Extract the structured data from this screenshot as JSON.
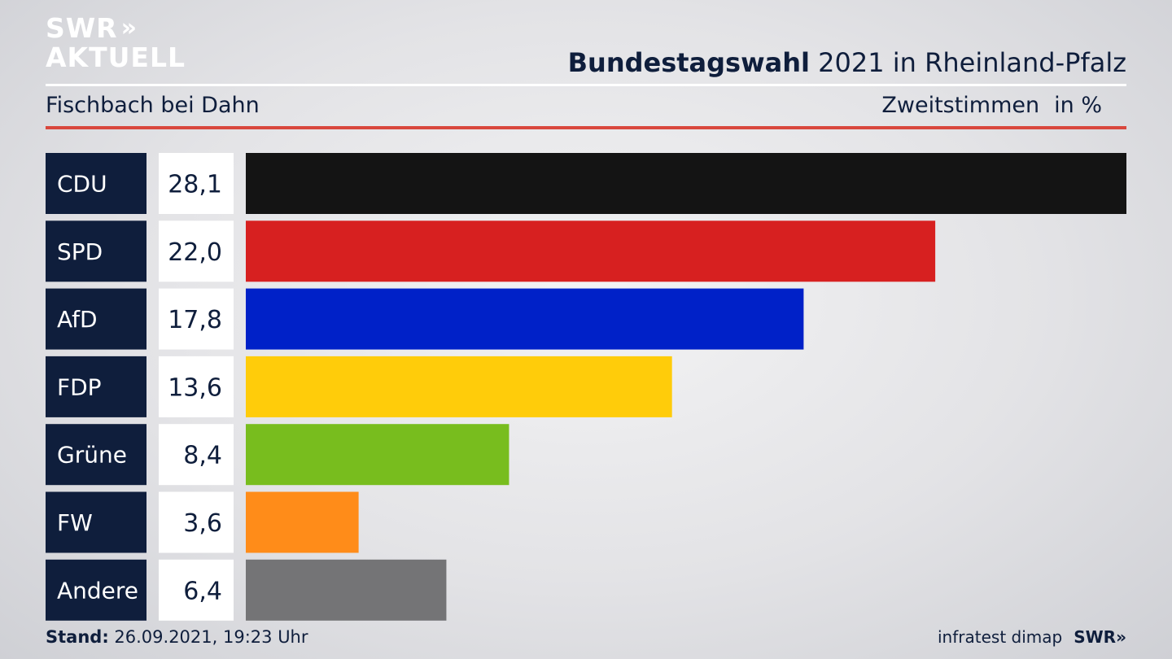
{
  "logo": {
    "line1": "SWR",
    "chevrons": "»",
    "line2": "AKTUELL"
  },
  "header": {
    "title_bold": "Bundestagswahl",
    "title_rest": "2021 in Rheinland-Pfalz"
  },
  "subtitle": "Fischbach bei Dahn",
  "metric": {
    "label": "Zweitstimmen",
    "unit": "in %"
  },
  "footer": {
    "stand_label": "Stand:",
    "stand_value": "26.09.2021, 19:23 Uhr",
    "source": "infratest dimap",
    "brand": "SWR»"
  },
  "colors": {
    "label_box": "#0f1e3c",
    "value_box": "#ffffff",
    "accent_rule": "#d9473d"
  },
  "chart_data": {
    "type": "bar",
    "orientation": "horizontal",
    "categories": [
      "CDU",
      "SPD",
      "AfD",
      "FDP",
      "Grüne",
      "FW",
      "Andere"
    ],
    "values": [
      28.1,
      22.0,
      17.8,
      13.6,
      8.4,
      3.6,
      6.4
    ],
    "value_labels": [
      "28,1",
      "22,0",
      "17,8",
      "13,6",
      "8,4",
      "3,6",
      "6,4"
    ],
    "colors": [
      "#141414",
      "#d72020",
      "#0021c8",
      "#ffcc0a",
      "#78bd1e",
      "#ff8c19",
      "#747476"
    ],
    "xlim": [
      0,
      28.1
    ],
    "grid": false,
    "legend": "none"
  }
}
